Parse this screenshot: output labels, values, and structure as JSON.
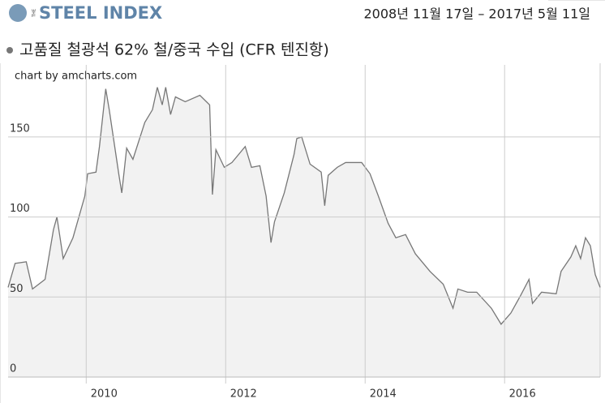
{
  "header": {
    "logo_small": "THE",
    "logo": "STEEL INDEX",
    "date_range": "2008년 11월 17일 – 2017년 5월 11일"
  },
  "chart_data": {
    "type": "area",
    "title": "고품질 철광석 62% 철/중국 수입 (CFR 텐진항)",
    "credit": "chart by amcharts.com",
    "color": "#777777",
    "fill": "#f2f2f2",
    "grid": true,
    "x": [
      2008.88,
      2008.98,
      2009.14,
      2009.23,
      2009.41,
      2009.53,
      2009.58,
      2009.67,
      2009.81,
      2009.98,
      2010.02,
      2010.14,
      2010.19,
      2010.28,
      2010.33,
      2010.47,
      2010.51,
      2010.58,
      2010.67,
      2010.84,
      2010.95,
      2011.02,
      2011.09,
      2011.14,
      2011.21,
      2011.28,
      2011.42,
      2011.63,
      2011.77,
      2011.81,
      2011.86,
      2011.98,
      2012.09,
      2012.28,
      2012.37,
      2012.49,
      2012.58,
      2012.65,
      2012.7,
      2012.84,
      2012.98,
      2013.02,
      2013.09,
      2013.21,
      2013.37,
      2013.42,
      2013.47,
      2013.6,
      2013.72,
      2013.95,
      2014.07,
      2014.19,
      2014.33,
      2014.44,
      2014.58,
      2014.72,
      2014.93,
      2015.12,
      2015.26,
      2015.33,
      2015.47,
      2015.6,
      2015.81,
      2015.95,
      2016.09,
      2016.23,
      2016.35,
      2016.4,
      2016.53,
      2016.74,
      2016.81,
      2016.95,
      2017.02,
      2017.09,
      2017.16,
      2017.23,
      2017.3,
      2017.37
    ],
    "values": [
      56,
      71,
      72,
      55,
      61,
      92,
      100,
      74,
      87,
      113,
      127,
      128,
      144,
      180,
      167,
      126,
      115,
      143,
      136,
      159,
      167,
      181,
      170,
      181,
      164,
      175,
      172,
      176,
      170,
      114,
      142,
      131,
      134,
      144,
      131,
      132,
      113,
      84,
      97,
      115,
      139,
      149,
      150,
      133,
      128,
      107,
      126,
      131,
      134,
      134,
      127,
      113,
      96,
      87,
      89,
      77,
      66,
      58,
      43,
      55,
      53,
      53,
      43,
      33,
      40,
      51,
      61,
      46,
      53,
      52,
      66,
      75,
      82,
      74,
      87,
      82,
      64,
      56
    ],
    "xlim": [
      2008.88,
      2017.37
    ],
    "xticks": [
      2010,
      2012,
      2014,
      2016
    ],
    "ylim": [
      0,
      195
    ],
    "yticks": [
      0,
      50,
      100,
      150
    ]
  }
}
